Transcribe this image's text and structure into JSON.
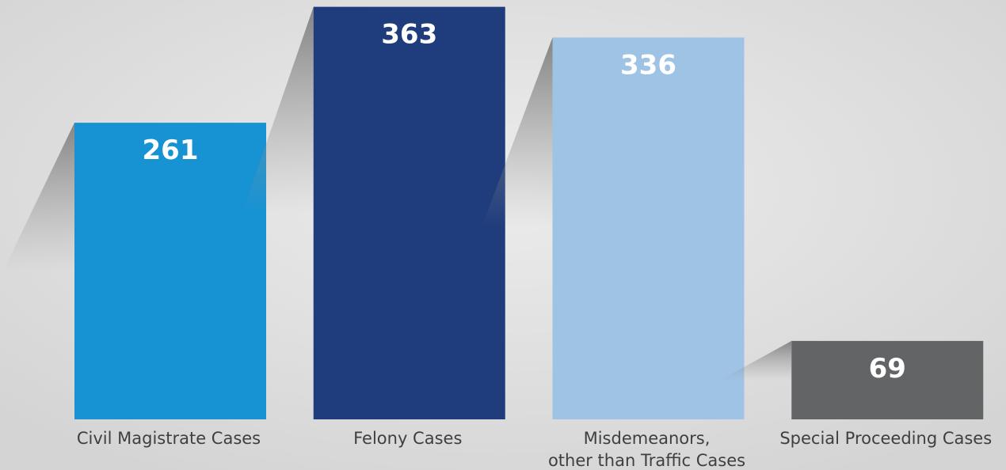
{
  "chart_data": {
    "type": "bar",
    "categories": [
      "Civil Magistrate Cases",
      "Felony Cases",
      "Misdemeanors,\nother than Traffic Cases",
      "Special Proceeding Cases"
    ],
    "values": [
      261,
      363,
      336,
      69
    ],
    "colors": [
      "#1793d3",
      "#1f3c7c",
      "#9fc3e5",
      "#636466"
    ],
    "ylim": [
      0,
      369
    ]
  }
}
